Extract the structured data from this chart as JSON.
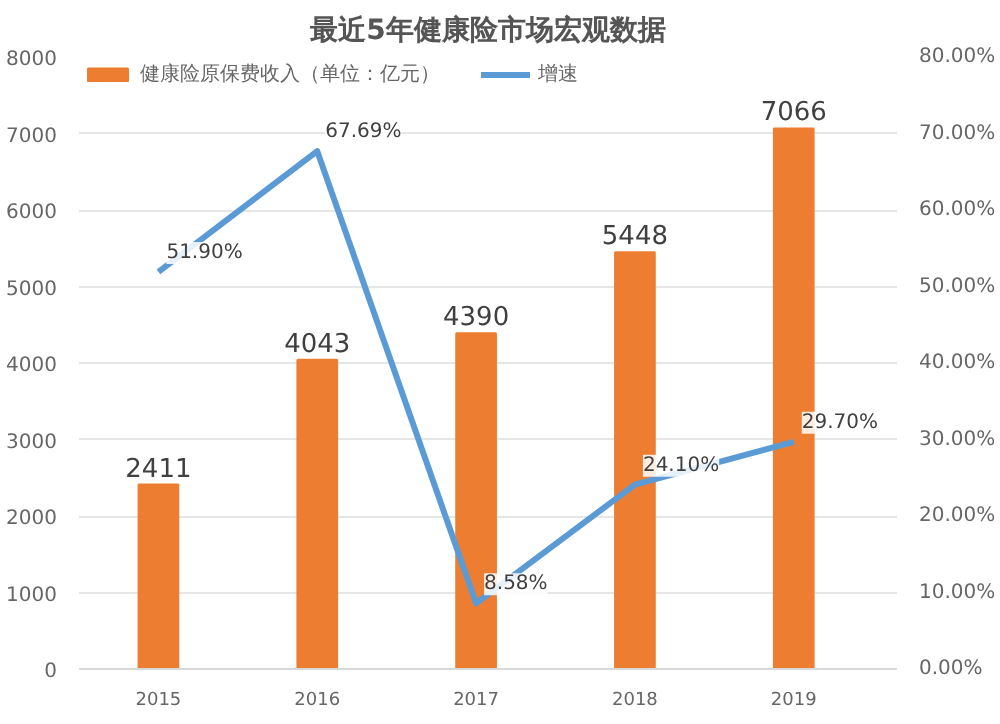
{
  "chart_data": {
    "type": "bar",
    "title": "最近5年健康险市场宏观数据",
    "categories": [
      "2015",
      "2016",
      "2017",
      "2018",
      "2019"
    ],
    "series": [
      {
        "name": "健康险原保费收入（单位：亿元）",
        "type": "bar",
        "color": "#ed7d31",
        "values": [
          2411,
          4043,
          4390,
          5448,
          7066
        ],
        "value_labels": [
          "2411",
          "4043",
          "4390",
          "5448",
          "7066"
        ]
      },
      {
        "name": "增速",
        "type": "line",
        "axis": "y2",
        "color": "#5b9bd5",
        "values": [
          51.9,
          67.69,
          8.58,
          24.1,
          29.7
        ],
        "value_labels": [
          "51.90%",
          "67.69%",
          "8.58%",
          "24.10%",
          "29.70%"
        ]
      }
    ],
    "ylim": [
      0,
      8000
    ],
    "yticks": [
      0,
      1000,
      2000,
      3000,
      4000,
      5000,
      6000,
      7000,
      8000
    ],
    "y2lim": [
      0,
      80
    ],
    "y2ticks": [
      {
        "value": 0,
        "label": "0.00%"
      },
      {
        "value": 10,
        "label": "10.00%"
      },
      {
        "value": 20,
        "label": "20.00%"
      },
      {
        "value": 30,
        "label": "30.00%"
      },
      {
        "value": 40,
        "label": "40.00%"
      },
      {
        "value": 50,
        "label": "50.00%"
      },
      {
        "value": 60,
        "label": "60.00%"
      },
      {
        "value": 70,
        "label": "70.00%"
      },
      {
        "value": 80,
        "label": "80.00%"
      }
    ],
    "grid": "y",
    "legend": "top left",
    "line_style": "solid"
  }
}
